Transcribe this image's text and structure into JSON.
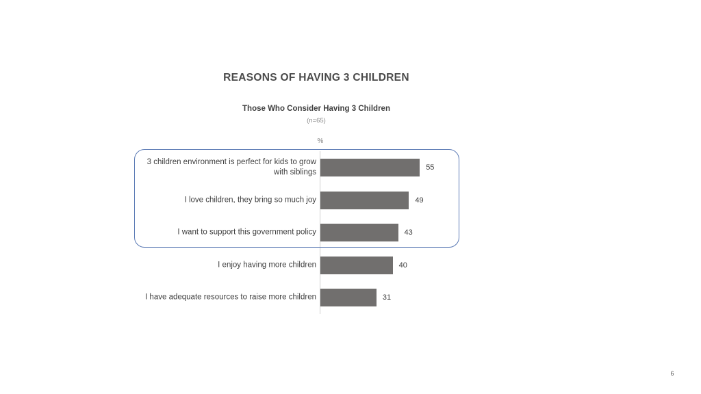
{
  "slide": {
    "page_number": "6"
  },
  "chart_data": {
    "type": "bar",
    "orientation": "horizontal",
    "title": "REASONS OF HAVING 3 CHILDREN",
    "subtitle": "Those Who Consider Having 3 Children",
    "sample_size": "(n=65)",
    "value_unit": "%",
    "categories": [
      "3 children environment is perfect for kids to grow with siblings",
      "I love children, they bring so much joy",
      "I want to support this government policy",
      "I enjoy having more children",
      "I have adequate resources to raise more children"
    ],
    "values": [
      55,
      49,
      43,
      40,
      31
    ],
    "xlim": [
      0,
      60
    ],
    "grid": false,
    "legend": false,
    "data_labels": true,
    "bar_color": "#716f6e",
    "axis_color": "#cfcfcf",
    "highlight_outline_color": "#5b7ab5",
    "annotation": "Top 3 reasons enclosed in rounded blue outline"
  }
}
